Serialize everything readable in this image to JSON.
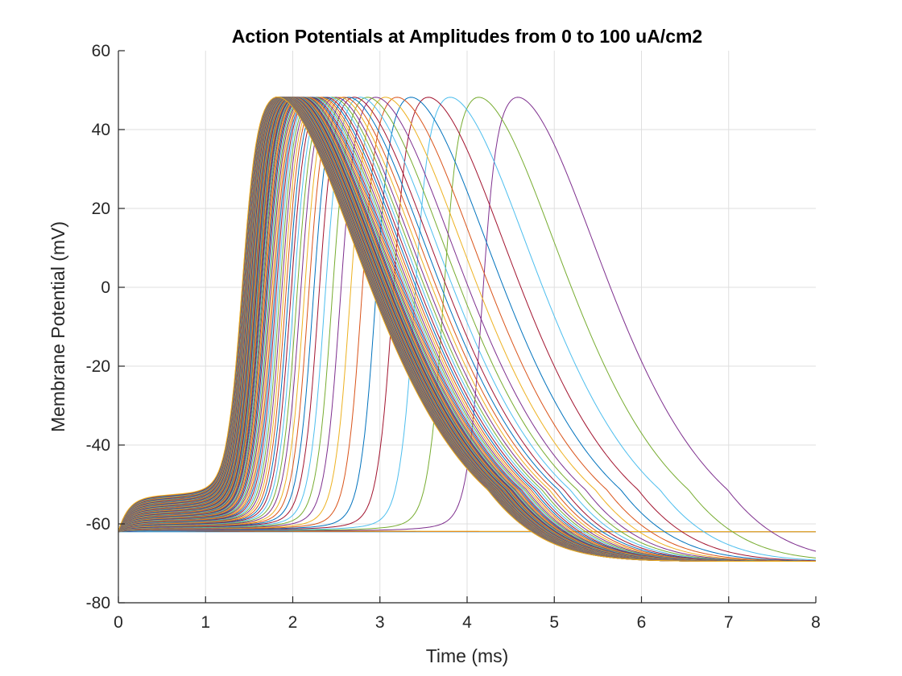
{
  "chart_data": {
    "type": "line",
    "title": "Action Potentials at Amplitudes from 0 to 100 uA/cm2",
    "xlabel": "Time (ms)",
    "ylabel": "Membrane Potential (mV)",
    "xlim": [
      0,
      8
    ],
    "ylim": [
      -80,
      60
    ],
    "xticks": [
      0,
      1,
      2,
      3,
      4,
      5,
      6,
      7,
      8
    ],
    "yticks": [
      -80,
      -60,
      -40,
      -20,
      0,
      20,
      40,
      60
    ],
    "grid": true,
    "legend": "none",
    "series_count": 101,
    "amplitude_range": [
      0,
      100
    ],
    "resting_potential": -62,
    "peak_potential": 49.5,
    "after_hyperpolarization": -69.5,
    "colors": [
      "#0072BD",
      "#D95319",
      "#EDB120",
      "#7E2F8E",
      "#77AC30",
      "#4DBEEE",
      "#A2142F"
    ],
    "series_example": [
      {
        "name": "",
        "x": [
          0,
          0.1,
          0.3,
          0.7,
          1.1,
          1.3,
          1.5,
          2.0,
          2.5,
          3.0,
          3.5,
          4.0,
          4.5,
          5.0,
          5.5,
          6.0,
          6.5,
          7.0,
          8.0
        ],
        "y": [
          -62,
          -53,
          -53,
          -48,
          -20,
          20,
          49.5,
          49,
          45,
          36,
          20,
          0,
          -18,
          -30,
          -40,
          -48,
          -62,
          -68,
          -69.5
        ]
      }
    ]
  }
}
